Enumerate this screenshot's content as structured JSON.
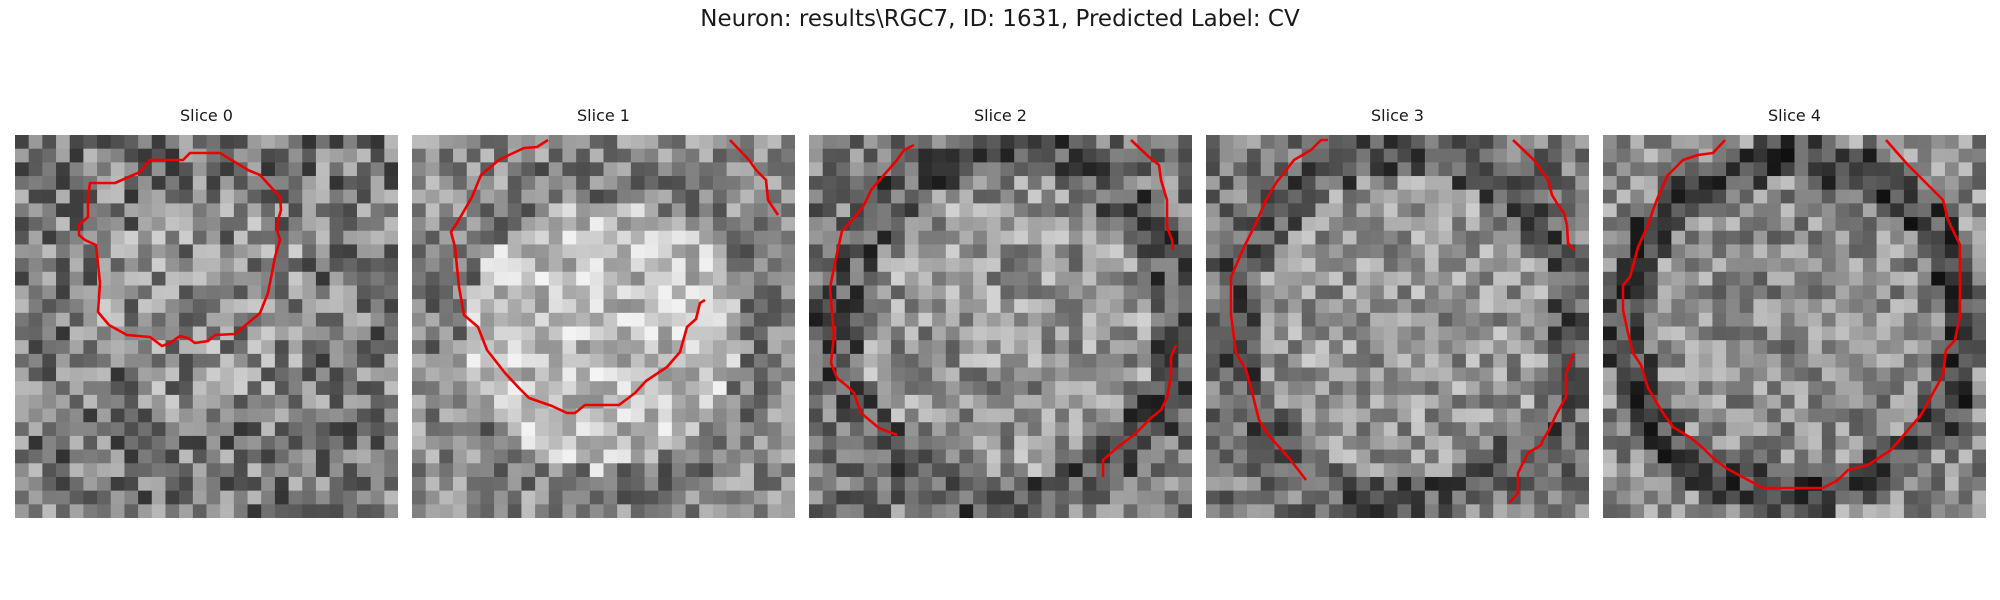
{
  "figure": {
    "title": "Neuron: results\\RGC7, ID: 1631, Predicted Label: CV"
  },
  "colors": {
    "contour": "#ee0000",
    "background": "#ffffff"
  },
  "panels": [
    {
      "title": "Slice 0"
    },
    {
      "title": "Slice 1"
    },
    {
      "title": "Slice 2"
    },
    {
      "title": "Slice 3"
    },
    {
      "title": "Slice 4"
    }
  ]
}
